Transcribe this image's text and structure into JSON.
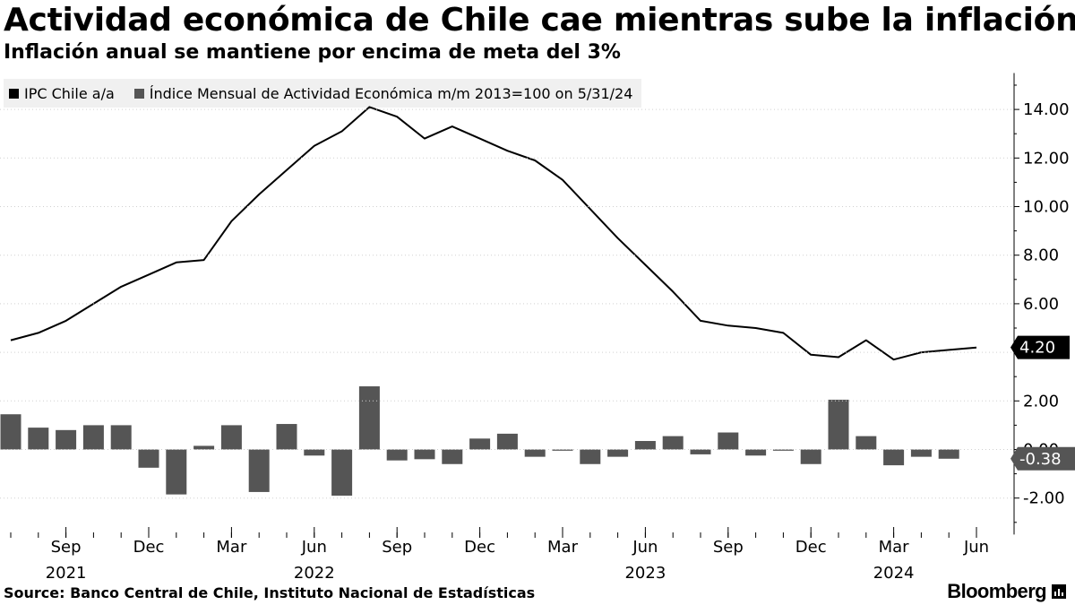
{
  "title": "Actividad económica de Chile cae mientras sube la inflación",
  "subtitle": "Inflación anual se mantiene por encima de meta del 3%",
  "source": "Source: Banco Central de Chile, Instituto Nacional de Estadísticas",
  "brand": "Bloomberg",
  "colors": {
    "ipc": "#000000",
    "imacec": "#555555",
    "label_bg": "#000000",
    "label_bg_neg": "#555555"
  },
  "chart_data": {
    "type": "line+bar",
    "legend": [
      "IPC Chile a/a",
      "Índice Mensual de Actividad Económica m/m 2013=100 on 5/31/24"
    ],
    "y_ticks": [
      "-2.00",
      "0.00",
      "2.00",
      "4.00",
      "6.00",
      "8.00",
      "10.00",
      "12.00",
      "14.00"
    ],
    "y_tick_values": [
      -2,
      0,
      2,
      4,
      6,
      8,
      10,
      12,
      14
    ],
    "ylim": [
      -3.5,
      15.5
    ],
    "x_months": [
      "Jul 2021",
      "Aug 2021",
      "Sep 2021",
      "Oct 2021",
      "Nov 2021",
      "Dec 2021",
      "Jan 2022",
      "Feb 2022",
      "Mar 2022",
      "Apr 2022",
      "May 2022",
      "Jun 2022",
      "Jul 2022",
      "Aug 2022",
      "Sep 2022",
      "Oct 2022",
      "Nov 2022",
      "Dec 2022",
      "Jan 2023",
      "Feb 2023",
      "Mar 2023",
      "Apr 2023",
      "May 2023",
      "Jun 2023",
      "Jul 2023",
      "Aug 2023",
      "Sep 2023",
      "Oct 2023",
      "Nov 2023",
      "Dec 2023",
      "Jan 2024",
      "Feb 2024",
      "Mar 2024",
      "Apr 2024",
      "May 2024",
      "Jun 2024"
    ],
    "x_tick_labels": [
      {
        "month_index": 2,
        "label": "Sep",
        "year": "2021"
      },
      {
        "month_index": 5,
        "label": "Dec",
        "year": ""
      },
      {
        "month_index": 8,
        "label": "Mar",
        "year": ""
      },
      {
        "month_index": 11,
        "label": "Jun",
        "year": "2022"
      },
      {
        "month_index": 14,
        "label": "Sep",
        "year": ""
      },
      {
        "month_index": 17,
        "label": "Dec",
        "year": ""
      },
      {
        "month_index": 20,
        "label": "Mar",
        "year": ""
      },
      {
        "month_index": 23,
        "label": "Jun",
        "year": "2023"
      },
      {
        "month_index": 26,
        "label": "Sep",
        "year": ""
      },
      {
        "month_index": 29,
        "label": "Dec",
        "year": ""
      },
      {
        "month_index": 32,
        "label": "Mar",
        "year": "2024"
      },
      {
        "month_index": 35,
        "label": "Jun",
        "year": ""
      }
    ],
    "series": [
      {
        "name": "IPC Chile a/a",
        "kind": "line",
        "values": [
          4.5,
          4.8,
          5.3,
          6.0,
          6.7,
          7.2,
          7.7,
          7.8,
          9.4,
          10.5,
          11.5,
          12.5,
          13.1,
          14.1,
          13.7,
          12.8,
          13.3,
          12.8,
          12.3,
          11.9,
          11.1,
          9.9,
          8.7,
          7.6,
          6.5,
          5.3,
          5.1,
          5.0,
          4.8,
          3.9,
          3.8,
          4.5,
          3.7,
          4.0,
          4.1,
          4.2
        ]
      },
      {
        "name": "Índice Mensual de Actividad Económica m/m 2013=100 on 5/31/24",
        "kind": "bar",
        "values": [
          1.45,
          0.9,
          0.8,
          1.0,
          1.0,
          -0.75,
          -1.85,
          0.15,
          1.0,
          -1.75,
          1.05,
          -0.25,
          -1.9,
          2.6,
          -0.45,
          -0.4,
          -0.6,
          0.45,
          0.65,
          -0.3,
          -0.05,
          -0.6,
          -0.3,
          0.35,
          0.55,
          -0.2,
          0.7,
          -0.25,
          -0.05,
          -0.6,
          2.05,
          0.55,
          -0.65,
          -0.3,
          -0.38
        ]
      }
    ],
    "last_value_labels": [
      {
        "series": 0,
        "text": "4.20"
      },
      {
        "series": 1,
        "text": "-0.38"
      }
    ]
  }
}
